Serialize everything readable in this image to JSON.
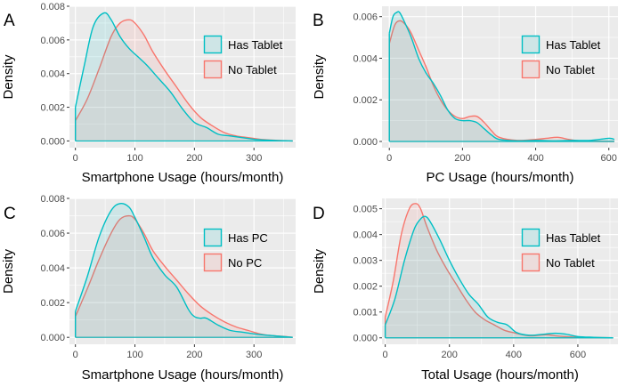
{
  "colors": {
    "cyan": "#00BFC4",
    "red": "#F8766D",
    "panel_bg": "#EBEBEB",
    "grid": "#FFFFFF"
  },
  "chart_data": [
    {
      "panel": "A",
      "type": "area",
      "title": "",
      "xlabel": "Smartphone Usage (hours/month)",
      "ylabel": "Density",
      "xlim": [
        -10,
        370
      ],
      "ylim": [
        -0.0004,
        0.008
      ],
      "xticks": [
        0,
        100,
        200,
        300
      ],
      "yticks": [
        0.0,
        0.002,
        0.004,
        0.006,
        0.008
      ],
      "ytick_labels": [
        "0.000",
        "0.002",
        "0.004",
        "0.006",
        "0.008"
      ],
      "legend_position": "right",
      "series": [
        {
          "name": "Has Tablet",
          "color": "#00BFC4",
          "x": [
            0,
            15,
            30,
            48,
            60,
            75,
            90,
            105,
            120,
            140,
            160,
            180,
            200,
            220,
            240,
            260,
            280,
            300,
            320,
            340,
            365
          ],
          "y": [
            0.002,
            0.0045,
            0.0068,
            0.0076,
            0.0072,
            0.0062,
            0.0055,
            0.005,
            0.0045,
            0.0037,
            0.0029,
            0.0019,
            0.0011,
            0.0008,
            0.0004,
            0.0003,
            0.0002,
            0.0001,
            5e-05,
            2e-05,
            0.0
          ]
        },
        {
          "name": "No Tablet",
          "color": "#F8766D",
          "x": [
            0,
            20,
            40,
            60,
            75,
            90,
            100,
            115,
            130,
            150,
            170,
            190,
            210,
            230,
            250,
            270,
            290,
            310,
            330,
            350,
            365
          ],
          "y": [
            0.0012,
            0.0025,
            0.0043,
            0.0062,
            0.007,
            0.0072,
            0.007,
            0.0063,
            0.0053,
            0.0042,
            0.0032,
            0.0022,
            0.0014,
            0.0009,
            0.0005,
            0.0003,
            0.0002,
            0.0001,
            5e-05,
            2e-05,
            0.0
          ]
        }
      ]
    },
    {
      "panel": "B",
      "type": "area",
      "title": "",
      "xlabel": "PC Usage (hours/month)",
      "ylabel": "Density",
      "xlim": [
        -20,
        625
      ],
      "ylim": [
        -0.0003,
        0.0065
      ],
      "xticks": [
        0,
        200,
        400,
        600
      ],
      "yticks": [
        0.0,
        0.002,
        0.004,
        0.006
      ],
      "ytick_labels": [
        "0.000",
        "0.002",
        "0.004",
        "0.006"
      ],
      "legend_position": "right",
      "series": [
        {
          "name": "Has Tablet",
          "color": "#00BFC4",
          "x": [
            0,
            10,
            20,
            28,
            40,
            60,
            80,
            100,
            120,
            140,
            160,
            180,
            200,
            220,
            240,
            260,
            280,
            300,
            350,
            400,
            450,
            500,
            550,
            600,
            615
          ],
          "y": [
            0.0052,
            0.006,
            0.0062,
            0.0062,
            0.0058,
            0.005,
            0.004,
            0.0033,
            0.0028,
            0.0022,
            0.0015,
            0.0011,
            0.001,
            0.001,
            0.0009,
            0.0006,
            0.0003,
            0.0001,
            3e-05,
            5e-05,
            3e-05,
            5e-05,
            5e-05,
            0.00015,
            0.0001
          ]
        },
        {
          "name": "No Tablet",
          "color": "#F8766D",
          "x": [
            0,
            15,
            30,
            45,
            60,
            80,
            100,
            120,
            140,
            160,
            180,
            200,
            220,
            240,
            260,
            280,
            300,
            350,
            400,
            430,
            460,
            490,
            520,
            560,
            615
          ],
          "y": [
            0.0047,
            0.0056,
            0.0058,
            0.0056,
            0.0052,
            0.0044,
            0.0036,
            0.0027,
            0.002,
            0.0015,
            0.0012,
            0.0011,
            0.0012,
            0.0012,
            0.0009,
            0.0005,
            0.0002,
            5e-05,
            0.0001,
            0.00015,
            0.0002,
            0.0001,
            3e-05,
            1e-05,
            0.0
          ]
        }
      ]
    },
    {
      "panel": "C",
      "type": "area",
      "title": "",
      "xlabel": "Smartphone Usage (hours/month)",
      "ylabel": "Density",
      "xlim": [
        -10,
        370
      ],
      "ylim": [
        -0.0004,
        0.008
      ],
      "xticks": [
        0,
        100,
        200,
        300
      ],
      "yticks": [
        0.0,
        0.002,
        0.004,
        0.006,
        0.008
      ],
      "ytick_labels": [
        "0.000",
        "0.002",
        "0.004",
        "0.006",
        "0.008"
      ],
      "legend_position": "right",
      "series": [
        {
          "name": "Has PC",
          "color": "#00BFC4",
          "x": [
            0,
            20,
            40,
            60,
            75,
            90,
            100,
            115,
            130,
            150,
            170,
            190,
            200,
            210,
            220,
            240,
            260,
            280,
            300,
            330,
            365
          ],
          "y": [
            0.0015,
            0.0035,
            0.0058,
            0.0073,
            0.0077,
            0.0075,
            0.0069,
            0.0058,
            0.0046,
            0.0036,
            0.0029,
            0.0016,
            0.0012,
            0.0011,
            0.0011,
            0.0007,
            0.0004,
            0.0003,
            0.0002,
            0.0001,
            0.0
          ]
        },
        {
          "name": "No PC",
          "color": "#F8766D",
          "x": [
            0,
            20,
            40,
            60,
            75,
            90,
            100,
            115,
            130,
            150,
            170,
            190,
            210,
            230,
            250,
            270,
            290,
            310,
            330,
            350,
            365
          ],
          "y": [
            0.0012,
            0.0028,
            0.0045,
            0.006,
            0.0068,
            0.007,
            0.0068,
            0.006,
            0.005,
            0.0041,
            0.0033,
            0.0025,
            0.0018,
            0.0013,
            0.0009,
            0.0006,
            0.0004,
            0.0002,
            0.0001,
            5e-05,
            0.0
          ]
        }
      ]
    },
    {
      "panel": "D",
      "type": "area",
      "title": "",
      "xlabel": "Total Usage (hours/month)",
      "ylabel": "Density",
      "xlim": [
        -10,
        725
      ],
      "ylim": [
        -0.00025,
        0.0054
      ],
      "xticks": [
        0,
        200,
        400,
        600
      ],
      "yticks": [
        0.0,
        0.001,
        0.002,
        0.003,
        0.004,
        0.005
      ],
      "ytick_labels": [
        "0.000",
        "0.001",
        "0.002",
        "0.003",
        "0.004",
        "0.005"
      ],
      "legend_position": "right",
      "series": [
        {
          "name": "Has Tablet",
          "color": "#00BFC4",
          "x": [
            0,
            30,
            60,
            90,
            110,
            125,
            140,
            170,
            200,
            230,
            260,
            290,
            320,
            350,
            380,
            410,
            450,
            500,
            530,
            560,
            600,
            650,
            710
          ],
          "y": [
            0.0005,
            0.0015,
            0.003,
            0.0042,
            0.0046,
            0.0047,
            0.0045,
            0.0038,
            0.003,
            0.0023,
            0.0017,
            0.0013,
            0.0008,
            0.0006,
            0.0005,
            0.0002,
            0.0001,
            0.00015,
            0.00018,
            0.00015,
            5e-05,
            2e-05,
            0.0
          ]
        },
        {
          "name": "No Tablet",
          "color": "#F8766D",
          "x": [
            0,
            25,
            50,
            75,
            95,
            110,
            130,
            160,
            190,
            220,
            250,
            280,
            310,
            340,
            370,
            400,
            450,
            500,
            530,
            560,
            600,
            650,
            710
          ],
          "y": [
            0.0008,
            0.0022,
            0.004,
            0.005,
            0.0052,
            0.005,
            0.0043,
            0.0034,
            0.0027,
            0.0021,
            0.0015,
            0.001,
            0.0007,
            0.0005,
            0.0003,
            0.0002,
            8e-05,
            0.00012,
            8e-05,
            5e-05,
            2e-05,
            1e-05,
            0.0
          ]
        }
      ]
    }
  ]
}
